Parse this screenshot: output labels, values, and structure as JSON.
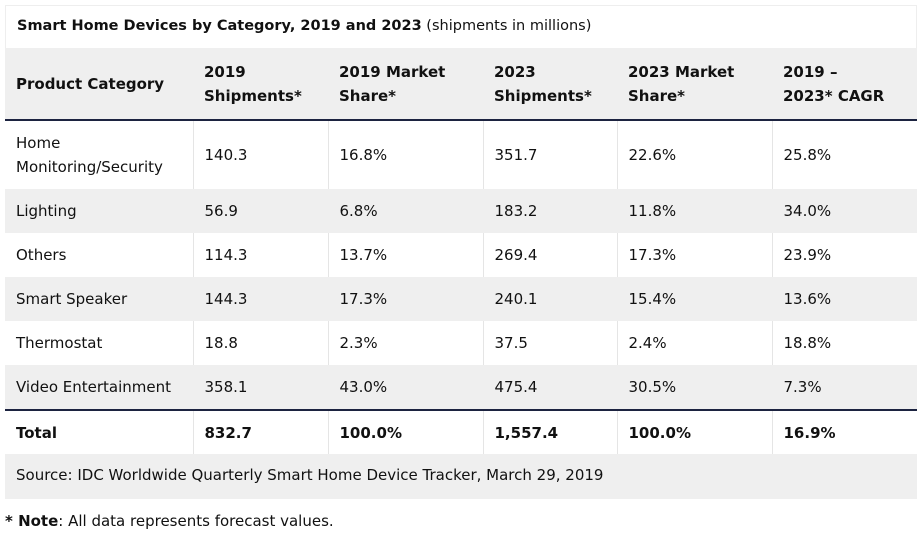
{
  "title": {
    "bold": "Smart Home Devices by Category, 2019 and 2023",
    "normal": " (shipments in millions)"
  },
  "headers": [
    "Product Category",
    "2019 Shipments*",
    "2019 Market Share*",
    "2023 Shipments*",
    "2023 Market Share*",
    "2019 – 2023* CAGR"
  ],
  "rows": [
    [
      "Home Monitoring/Security",
      "140.3",
      "16.8%",
      "351.7",
      "22.6%",
      "25.8%"
    ],
    [
      "Lighting",
      "56.9",
      "6.8%",
      "183.2",
      "11.8%",
      "34.0%"
    ],
    [
      "Others",
      "114.3",
      "13.7%",
      "269.4",
      "17.3%",
      "23.9%"
    ],
    [
      "Smart Speaker",
      "144.3",
      "17.3%",
      "240.1",
      "15.4%",
      "13.6%"
    ],
    [
      "Thermostat",
      "18.8",
      "2.3%",
      "37.5",
      "2.4%",
      "18.8%"
    ],
    [
      "Video Entertainment",
      "358.1",
      "43.0%",
      "475.4",
      "30.5%",
      "7.3%"
    ]
  ],
  "total": [
    "Total",
    "832.7",
    "100.0%",
    "1,557.4",
    "100.0%",
    "16.9%"
  ],
  "source": "Source: IDC Worldwide Quarterly Smart Home Device Tracker, March 29, 2019",
  "note": {
    "label": "* Note",
    "text": ": All data represents forecast values."
  }
}
